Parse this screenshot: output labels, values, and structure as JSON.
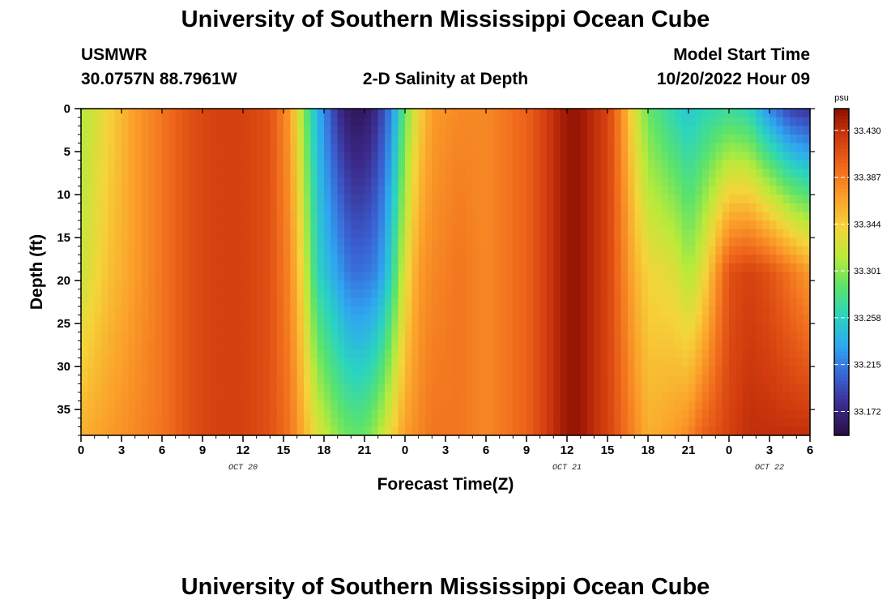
{
  "page": {
    "title_top": "University of Southern Mississippi Ocean Cube",
    "title_bottom": "University of Southern Mississippi Ocean Cube",
    "station_id": "USMWR",
    "station_coords": "30.0757N  88.7961W",
    "plot_subtitle": "2-D Salinity at Depth",
    "model_start_label": "Model Start Time",
    "model_start_value": "10/20/2022 Hour 09"
  },
  "chart_data": {
    "type": "heatmap",
    "title": "2-D Salinity at Depth",
    "xlabel": "Forecast Time(Z)",
    "ylabel": "Depth (ft)",
    "x_tick_labels": [
      "0",
      "3",
      "6",
      "9",
      "12",
      "15",
      "18",
      "21",
      "0",
      "3",
      "6",
      "9",
      "12",
      "15",
      "18",
      "21",
      "0",
      "3",
      "6"
    ],
    "x_range_hours": [
      0,
      54
    ],
    "x_date_labels": [
      {
        "label": "OCT 20",
        "hour": 12
      },
      {
        "label": "OCT 21",
        "hour": 36
      },
      {
        "label": "OCT 22",
        "hour": 51
      }
    ],
    "y_tick_values": [
      0,
      5,
      10,
      15,
      20,
      25,
      30,
      35
    ],
    "y_range_ft": [
      0,
      38
    ],
    "colorbar": {
      "unit": "psu",
      "tick_labels": [
        "33.430",
        "33.387",
        "33.344",
        "33.301",
        "33.258",
        "33.215",
        "33.172"
      ],
      "range": [
        33.15,
        33.45
      ],
      "colors": [
        "#2a0f44",
        "#3b2a8c",
        "#3a63d4",
        "#2fa6f0",
        "#2ad4c0",
        "#5be36b",
        "#b9ea3a",
        "#f5d43a",
        "#fba02a",
        "#f06a1c",
        "#d23c0e",
        "#8e0e02"
      ]
    },
    "salinity_profile": {
      "note": "approximate salinity (psu) at surface (0 ft), mid (19 ft), bottom (38 ft) vs forecast hour",
      "hours": [
        0,
        2,
        4,
        6,
        8,
        10,
        12,
        14,
        15.5,
        16.5,
        17.5,
        19,
        20,
        21,
        22,
        23,
        24,
        25,
        26,
        28,
        30,
        33,
        35,
        36,
        37,
        38,
        39,
        40,
        41,
        42,
        44,
        45,
        46,
        48,
        49.5,
        51,
        52.5,
        54
      ],
      "surface": [
        33.31,
        33.34,
        33.37,
        33.39,
        33.41,
        33.42,
        33.42,
        33.41,
        33.37,
        33.3,
        33.24,
        33.18,
        33.16,
        33.16,
        33.18,
        33.22,
        33.29,
        33.34,
        33.37,
        33.38,
        33.38,
        33.4,
        33.43,
        33.445,
        33.445,
        33.43,
        33.42,
        33.38,
        33.33,
        33.29,
        33.26,
        33.25,
        33.26,
        33.27,
        33.26,
        33.22,
        33.19,
        33.18
      ],
      "mid": [
        33.32,
        33.35,
        33.37,
        33.39,
        33.41,
        33.42,
        33.42,
        33.41,
        33.38,
        33.33,
        33.26,
        33.23,
        33.21,
        33.21,
        33.22,
        33.26,
        33.33,
        33.37,
        33.38,
        33.39,
        33.38,
        33.4,
        33.43,
        33.445,
        33.445,
        33.43,
        33.42,
        33.39,
        33.36,
        33.34,
        33.33,
        33.31,
        33.33,
        33.41,
        33.42,
        33.41,
        33.39,
        33.37
      ],
      "bottom": [
        33.36,
        33.37,
        33.38,
        33.39,
        33.41,
        33.42,
        33.42,
        33.41,
        33.39,
        33.36,
        33.33,
        33.3,
        33.29,
        33.29,
        33.31,
        33.34,
        33.37,
        33.38,
        33.39,
        33.39,
        33.38,
        33.4,
        33.43,
        33.445,
        33.445,
        33.43,
        33.42,
        33.4,
        33.38,
        33.36,
        33.37,
        33.38,
        33.4,
        33.42,
        33.43,
        33.43,
        33.43,
        33.43
      ]
    }
  }
}
